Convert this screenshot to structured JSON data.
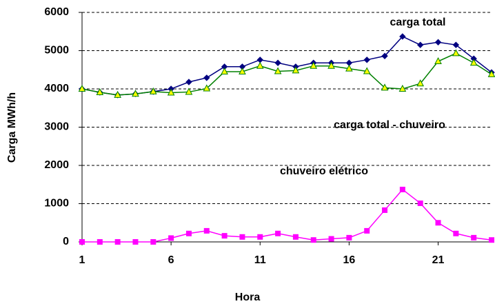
{
  "chart_data": {
    "type": "line",
    "x": [
      1,
      2,
      3,
      4,
      5,
      6,
      7,
      8,
      9,
      10,
      11,
      12,
      13,
      14,
      15,
      16,
      17,
      18,
      19,
      20,
      21,
      22,
      23,
      24
    ],
    "series": [
      {
        "name": "carga total",
        "color": "#000080",
        "marker": "diamond",
        "values": [
          4000,
          3910,
          3840,
          3870,
          3930,
          4000,
          4180,
          4290,
          4580,
          4580,
          4760,
          4680,
          4580,
          4680,
          4680,
          4680,
          4760,
          4860,
          5370,
          5150,
          5220,
          5150,
          4790,
          4430
        ]
      },
      {
        "name": "carga total - chuveiro",
        "color": "#008000",
        "marker": "triangle",
        "values": [
          4000,
          3910,
          3840,
          3870,
          3930,
          3900,
          3920,
          4010,
          4450,
          4450,
          4600,
          4460,
          4480,
          4600,
          4600,
          4530,
          4460,
          4030,
          4000,
          4140,
          4720,
          4930,
          4680,
          4380
        ]
      },
      {
        "name": "chuveiro elétrico",
        "color": "#ff00ff",
        "marker": "square",
        "values": [
          0,
          0,
          0,
          0,
          0,
          100,
          220,
          290,
          160,
          130,
          130,
          220,
          130,
          50,
          80,
          110,
          290,
          830,
          1370,
          1010,
          500,
          220,
          110,
          50
        ]
      }
    ],
    "annotations": [
      "carga total",
      "carga total - chuveiro",
      "chuveiro elétrico"
    ],
    "xlabel": "Hora",
    "ylabel": "Carga MWh/h",
    "xlim": [
      1,
      24
    ],
    "xticks": [
      1,
      6,
      11,
      16,
      21
    ],
    "ylim": [
      0,
      6000
    ],
    "yticks": [
      0,
      1000,
      2000,
      3000,
      4000,
      5000,
      6000
    ],
    "grid": true
  }
}
